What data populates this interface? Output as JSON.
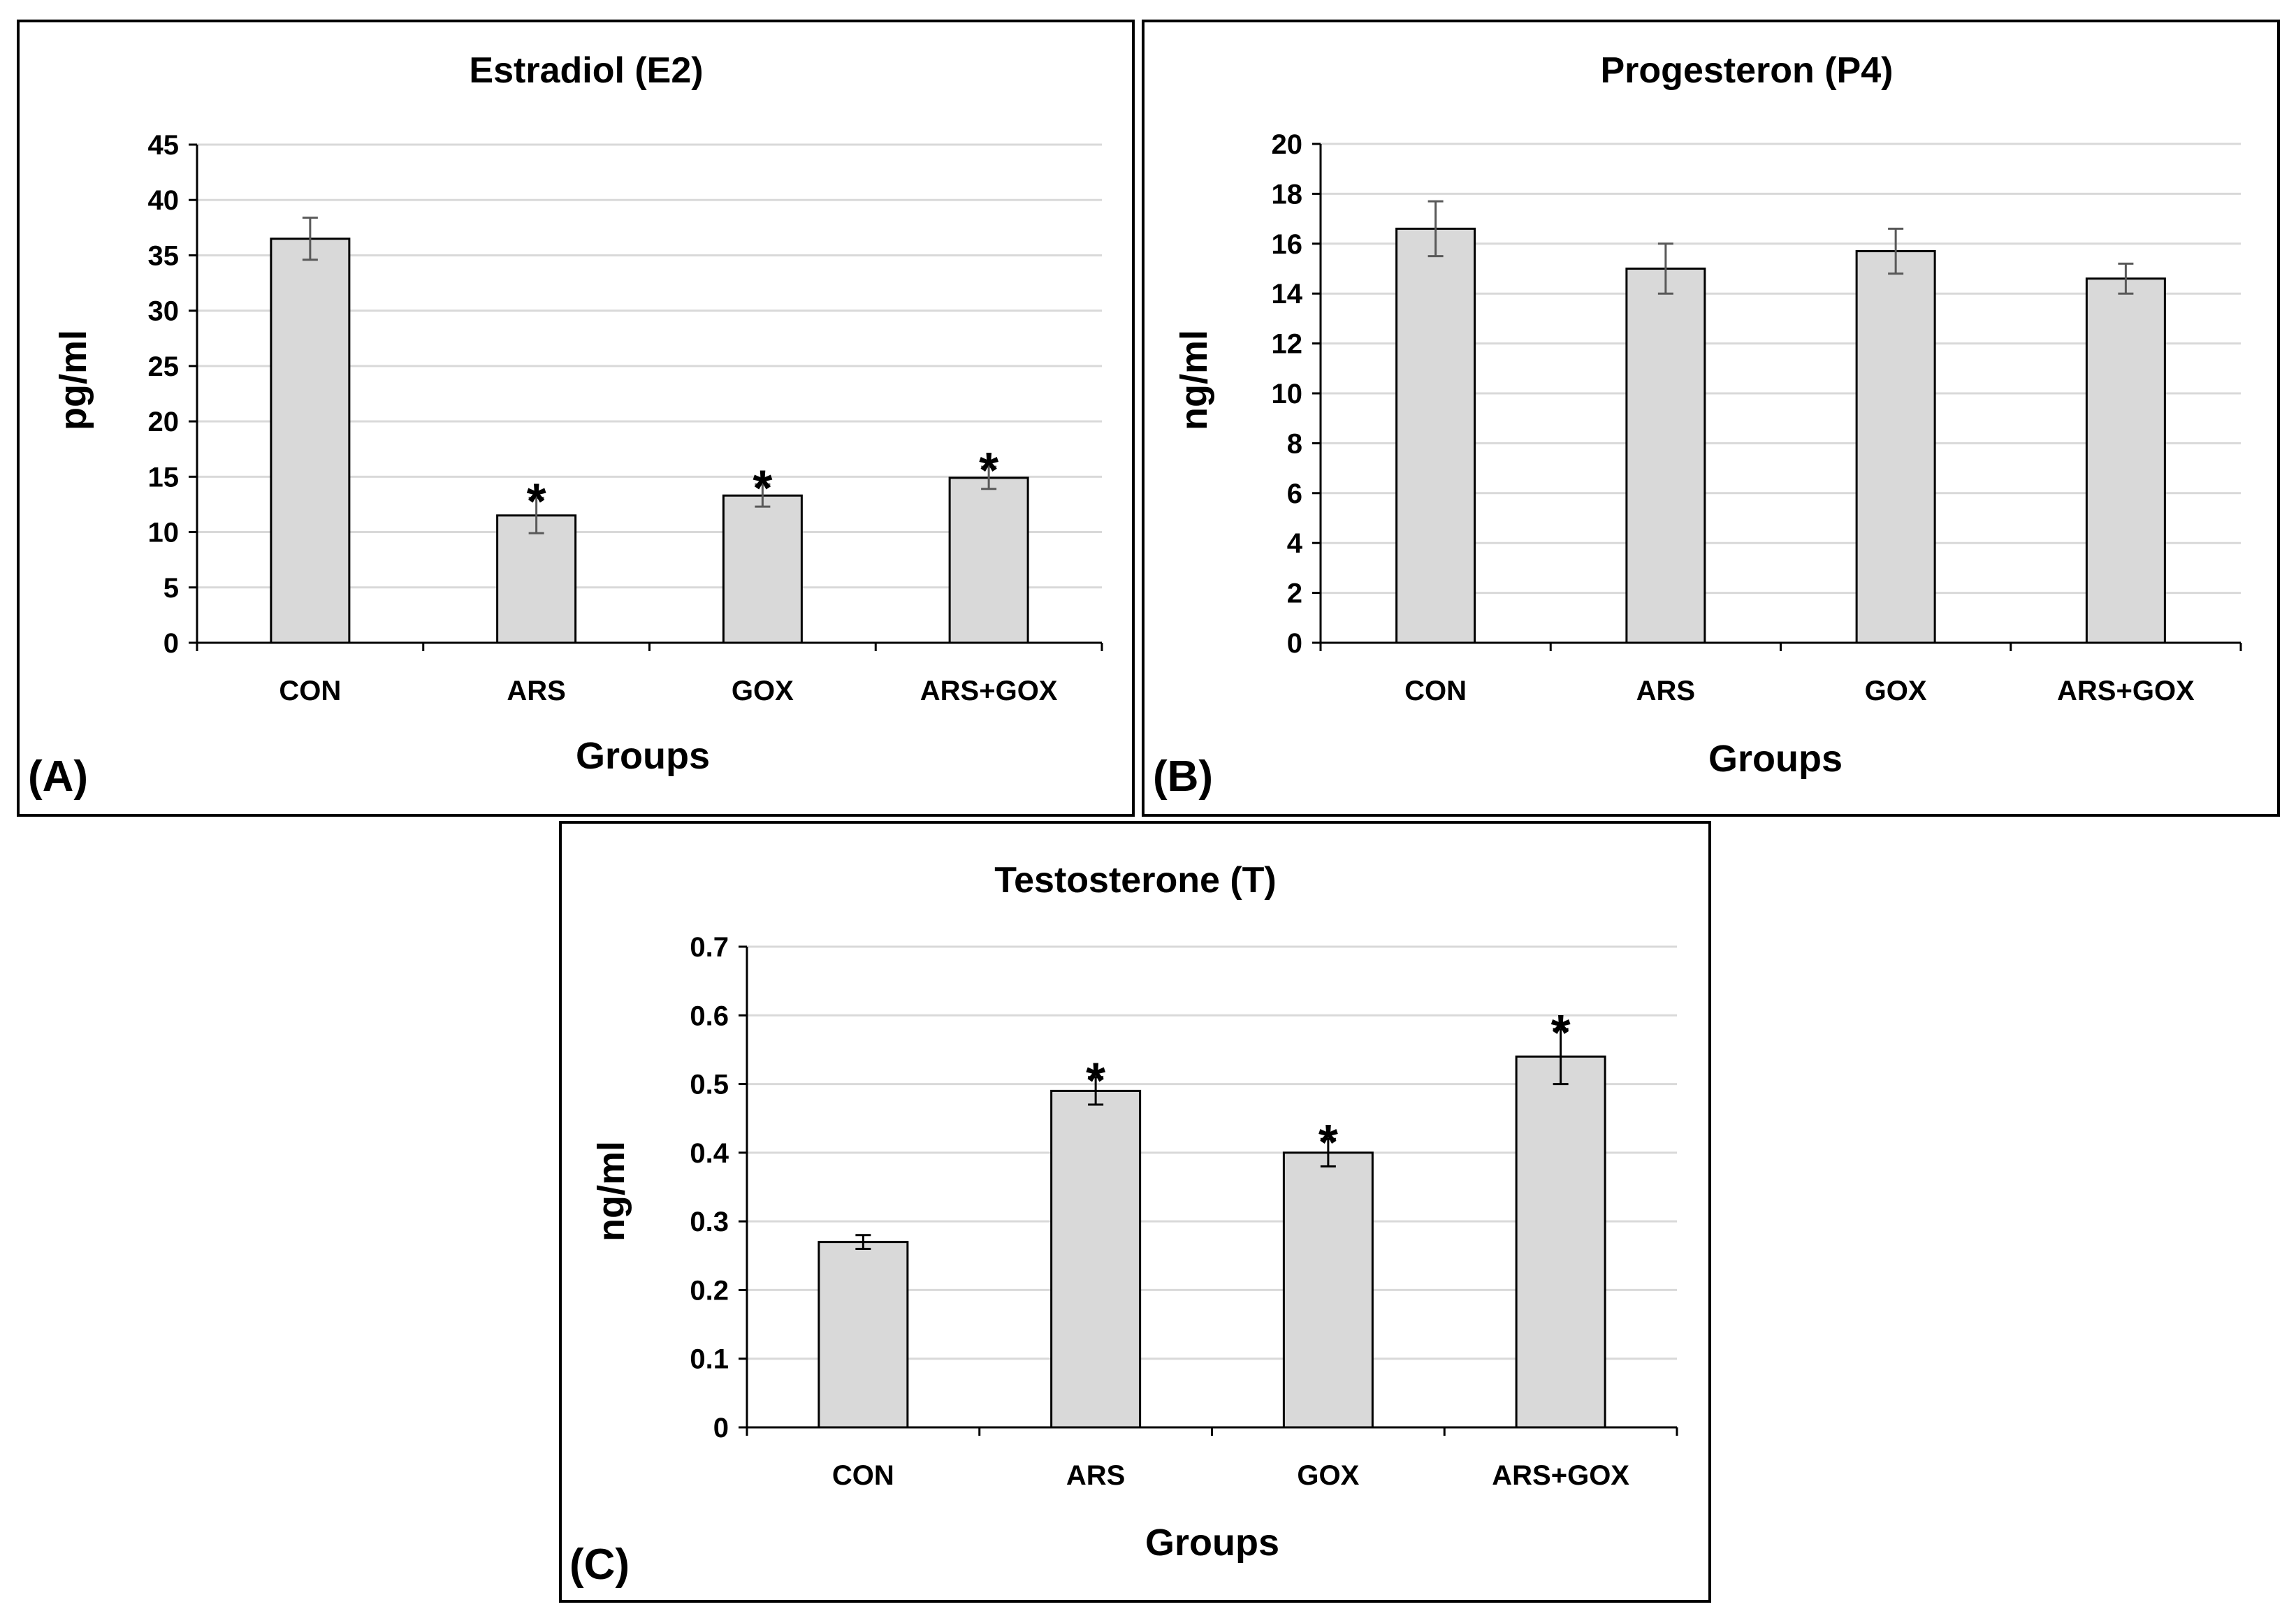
{
  "figure": {
    "chart_data": [
      {
        "type": "bar",
        "title": "Estradiol (E2)",
        "panel_label": "(A)",
        "xlabel": "Groups",
        "ylabel": "pg/ml",
        "categories": [
          "CON",
          "ARS",
          "GOX",
          "ARS+GOX"
        ],
        "values": [
          36.5,
          11.5,
          13.3,
          14.9
        ],
        "errors": [
          1.9,
          1.6,
          1.0,
          1.0
        ],
        "significance": [
          "",
          "*",
          "*",
          "*"
        ],
        "ylim": [
          0,
          45
        ],
        "yticks": [
          0,
          5,
          10,
          15,
          20,
          25,
          30,
          35,
          40,
          45
        ],
        "ytick_labels": [
          "0",
          "5",
          "10",
          "15",
          "20",
          "25",
          "30",
          "35",
          "40",
          "45"
        ],
        "grid": true,
        "colors": {
          "bar_fill": "#d9d9d9",
          "bar_stroke": "#000000",
          "grid": "#d9d9d9",
          "error": "#595959"
        }
      },
      {
        "type": "bar",
        "title": "Progesteron (P4)",
        "panel_label": "(B)",
        "xlabel": "Groups",
        "ylabel": "ng/ml",
        "categories": [
          "CON",
          "ARS",
          "GOX",
          "ARS+GOX"
        ],
        "values": [
          16.6,
          15.0,
          15.7,
          14.6
        ],
        "errors": [
          1.1,
          1.0,
          0.9,
          0.6
        ],
        "significance": [
          "",
          "",
          "",
          ""
        ],
        "ylim": [
          0,
          20
        ],
        "yticks": [
          0,
          2,
          4,
          6,
          8,
          10,
          12,
          14,
          16,
          18,
          20
        ],
        "ytick_labels": [
          "0",
          "2",
          "4",
          "6",
          "8",
          "10",
          "12",
          "14",
          "16",
          "18",
          "20"
        ],
        "grid": true,
        "colors": {
          "bar_fill": "#d9d9d9",
          "bar_stroke": "#000000",
          "grid": "#d9d9d9",
          "error": "#595959"
        }
      },
      {
        "type": "bar",
        "title": "Testosterone (T)",
        "panel_label": "(C)",
        "xlabel": "Groups",
        "ylabel": "ng/ml",
        "categories": [
          "CON",
          "ARS",
          "GOX",
          "ARS+GOX"
        ],
        "values": [
          0.27,
          0.49,
          0.4,
          0.54
        ],
        "errors": [
          0.01,
          0.02,
          0.02,
          0.04
        ],
        "significance": [
          "",
          "*",
          "*",
          "*"
        ],
        "ylim": [
          0,
          0.7
        ],
        "yticks": [
          0,
          0.1,
          0.2,
          0.3,
          0.4,
          0.5,
          0.6,
          0.7
        ],
        "ytick_labels": [
          "0",
          "0.1",
          "0.2",
          "0.3",
          "0.4",
          "0.5",
          "0.6",
          "0.7"
        ],
        "grid": true,
        "colors": {
          "bar_fill": "#d9d9d9",
          "bar_stroke": "#000000",
          "grid": "#d9d9d9",
          "error": "#000000"
        }
      }
    ]
  }
}
